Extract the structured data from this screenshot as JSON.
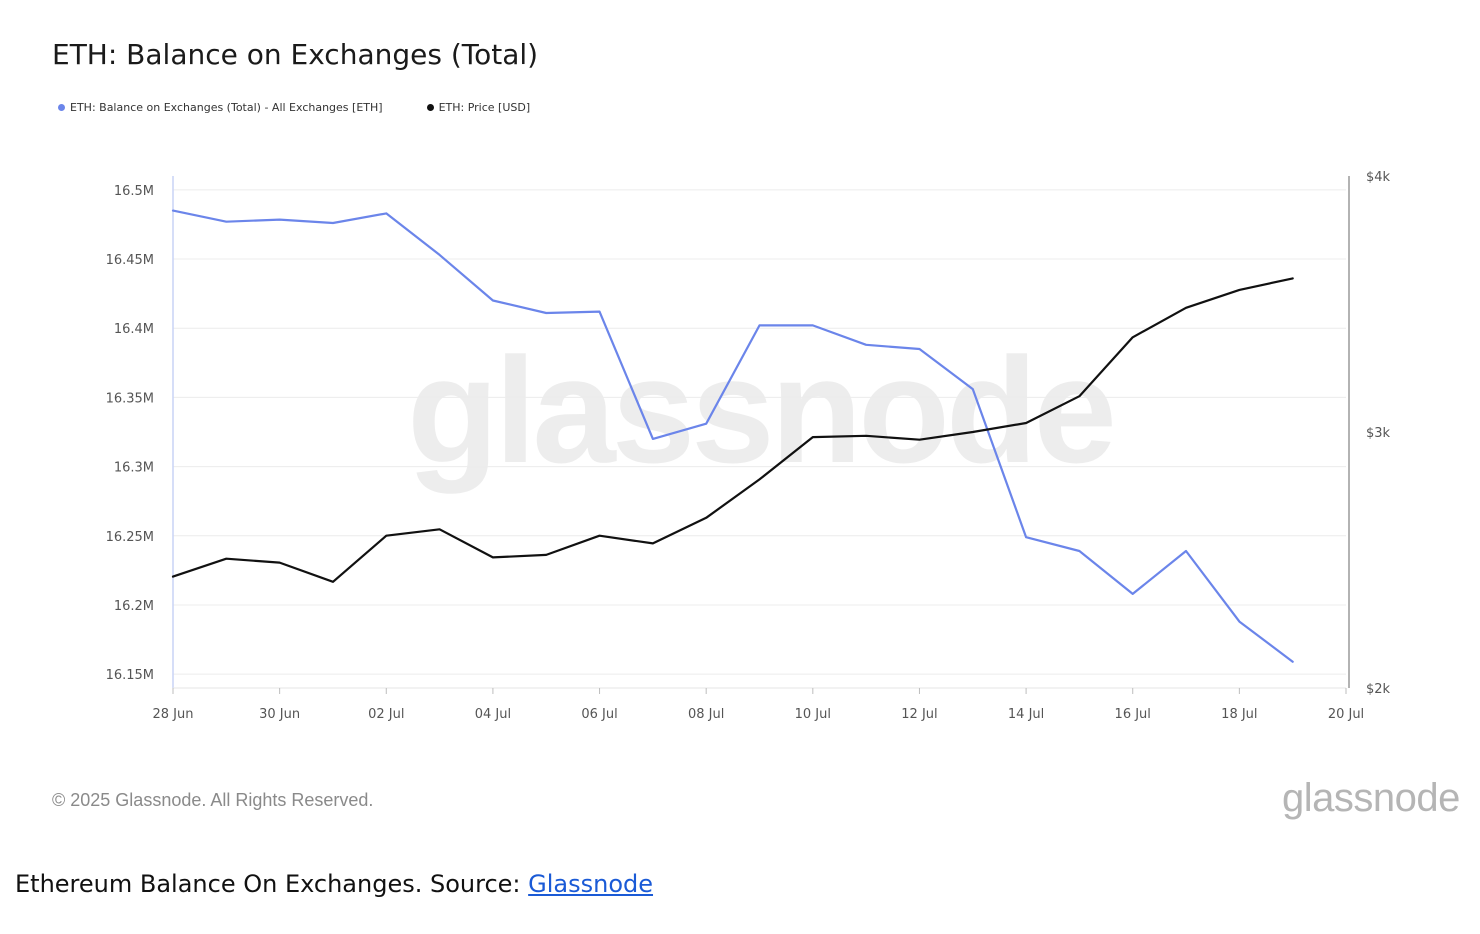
{
  "caption": {
    "text": "Ethereum Balance On Exchanges. Source: ",
    "link_label": "Glassnode"
  },
  "footer": {
    "copyright": "© 2025 Glassnode. All Rights Reserved.",
    "brand": "glassnode"
  },
  "colors": {
    "balance": "#6b85ea",
    "price": "#111111",
    "grid": "#ececec",
    "axis_text": "#555555"
  },
  "chart_data": {
    "type": "line",
    "title": "ETH: Balance on Exchanges (Total)",
    "watermark": "glassnode",
    "x_ticks": [
      "28 Jun",
      "30 Jun",
      "02 Jul",
      "04 Jul",
      "06 Jul",
      "08 Jul",
      "10 Jul",
      "12 Jul",
      "14 Jul",
      "16 Jul",
      "18 Jul",
      "20 Jul"
    ],
    "x": [
      "2025-06-28",
      "2025-06-29",
      "2025-06-30",
      "2025-07-01",
      "2025-07-02",
      "2025-07-03",
      "2025-07-04",
      "2025-07-05",
      "2025-07-06",
      "2025-07-07",
      "2025-07-08",
      "2025-07-09",
      "2025-07-10",
      "2025-07-11",
      "2025-07-12",
      "2025-07-13",
      "2025-07-14",
      "2025-07-15",
      "2025-07-16",
      "2025-07-17",
      "2025-07-18",
      "2025-07-19"
    ],
    "xlim": [
      "2025-06-28",
      "2025-07-20"
    ],
    "y_left": {
      "ticks": [
        16150000,
        16200000,
        16250000,
        16300000,
        16350000,
        16400000,
        16450000,
        16500000
      ],
      "tick_labels": [
        "16.15M",
        "16.2M",
        "16.25M",
        "16.3M",
        "16.35M",
        "16.4M",
        "16.45M",
        "16.5M"
      ],
      "ylim": [
        16140000,
        16510000
      ]
    },
    "y_right": {
      "ticks": [
        2000,
        3000,
        4000
      ],
      "tick_labels": [
        "$2k",
        "$3k",
        "$4k"
      ],
      "ylim": [
        2000,
        4000
      ]
    },
    "legend_position": "top-left",
    "series": [
      {
        "name": "ETH: Balance on Exchanges (Total) - All Exchanges [ETH]",
        "axis": "left",
        "values": [
          16485000,
          16477000,
          16478500,
          16476000,
          16483000,
          16453000,
          16420000,
          16411000,
          16412000,
          16320000,
          16331000,
          16402000,
          16402000,
          16388000,
          16385000,
          16356000,
          16249000,
          16239000,
          16208000,
          16239000,
          16188000,
          16159000
        ]
      },
      {
        "name": "ETH: Price [USD]",
        "axis": "right",
        "values": [
          2435,
          2505,
          2490,
          2415,
          2595,
          2620,
          2510,
          2520,
          2595,
          2565,
          2665,
          2815,
          2980,
          2985,
          2970,
          3000,
          3035,
          3140,
          3370,
          3485,
          3555,
          3600
        ]
      }
    ]
  }
}
